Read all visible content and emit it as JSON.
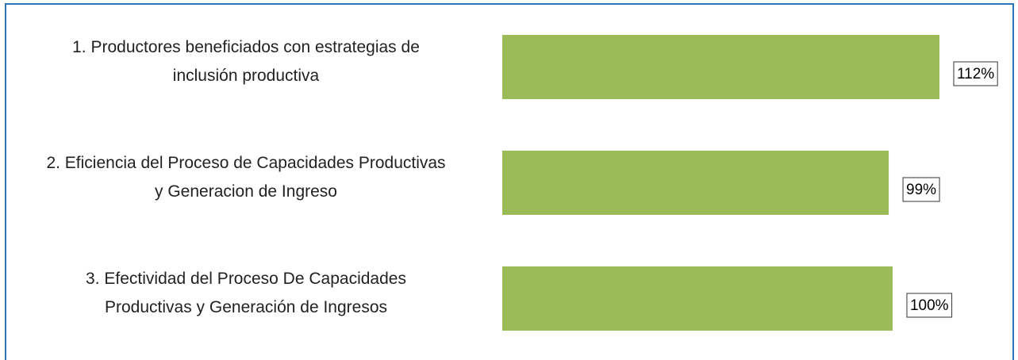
{
  "chart_data": {
    "type": "bar",
    "orientation": "horizontal",
    "categories": [
      "1. Productores beneficiados con estrategias de\ninclusión productiva",
      "2. Eficiencia del Proceso de  Capacidades Productivas\ny Generacion de Ingreso",
      "3. Efectividad del Proceso De Capacidades\nProductivas y Generación de Ingresos"
    ],
    "values": [
      112,
      99,
      100
    ],
    "value_labels": [
      "112%",
      "99%",
      "100%"
    ],
    "color": "#9bbb59",
    "xlim": [
      0,
      112
    ]
  }
}
